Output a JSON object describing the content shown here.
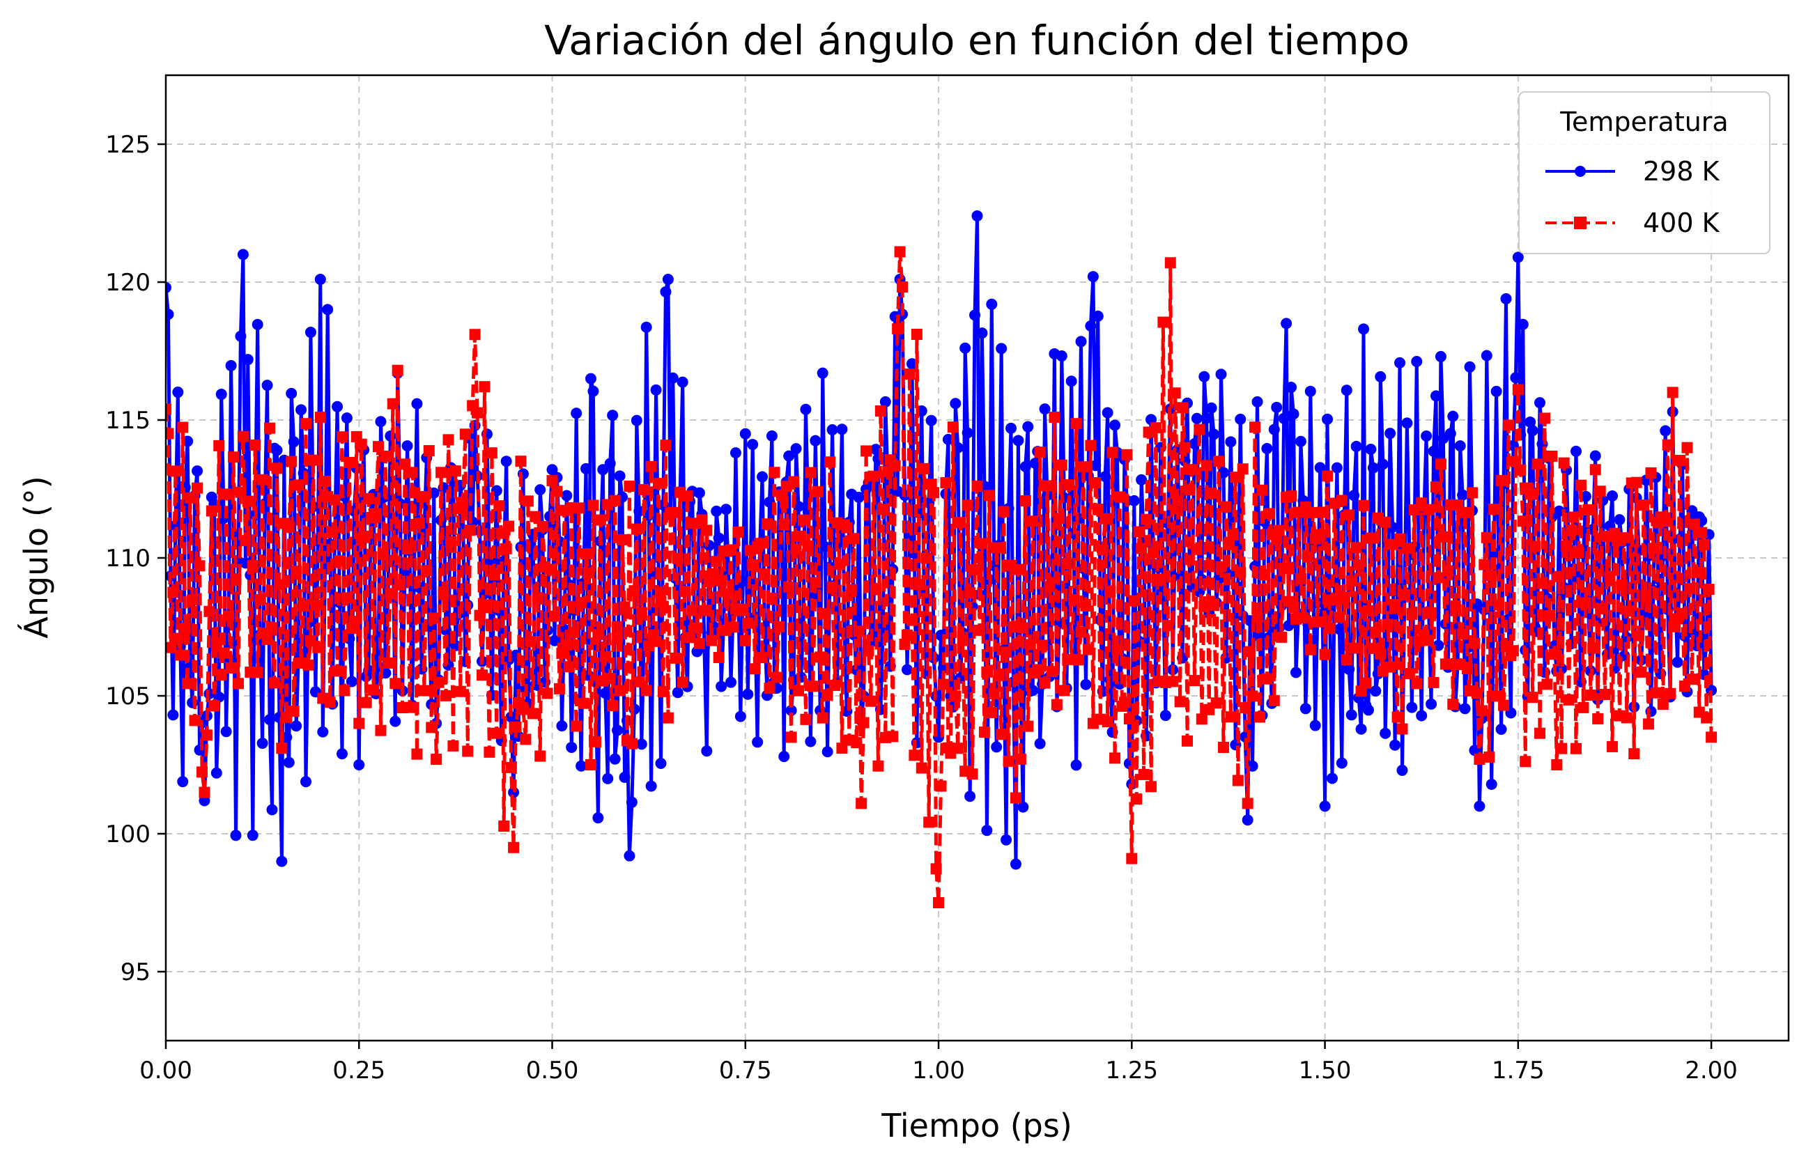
{
  "chart_data": {
    "type": "line",
    "title": "Variación del ángulo en función del tiempo",
    "xlabel": "Tiempo (ps)",
    "ylabel": "Ángulo (°)",
    "xlim": [
      0.0,
      2.1
    ],
    "ylim": [
      92.5,
      127.5
    ],
    "xticks": [
      0.0,
      0.25,
      0.5,
      0.75,
      1.0,
      1.25,
      1.5,
      1.75,
      2.0
    ],
    "xtick_labels": [
      "0.00",
      "0.25",
      "0.50",
      "0.75",
      "1.00",
      "1.25",
      "1.50",
      "1.75",
      "2.00"
    ],
    "yticks": [
      95,
      100,
      105,
      110,
      115,
      120,
      125
    ],
    "ytick_labels": [
      "95",
      "100",
      "105",
      "110",
      "115",
      "120",
      "125"
    ],
    "grid": true,
    "legend": {
      "title": "Temperatura",
      "placement": "top-right"
    },
    "x": [
      0.0,
      0.05,
      0.1,
      0.15,
      0.2,
      0.25,
      0.3,
      0.35,
      0.4,
      0.45,
      0.5,
      0.55,
      0.6,
      0.65,
      0.7,
      0.75,
      0.8,
      0.85,
      0.9,
      0.95,
      1.0,
      1.05,
      1.1,
      1.15,
      1.2,
      1.25,
      1.3,
      1.35,
      1.4,
      1.45,
      1.5,
      1.55,
      1.6,
      1.65,
      1.7,
      1.75,
      1.8,
      1.85,
      1.9,
      1.95,
      2.0
    ],
    "series": [
      {
        "name": "298 K",
        "color": "#0000ff",
        "line_style": "solid",
        "marker": "circle",
        "values": [
          119.8,
          101.2,
          121.0,
          99.0,
          120.1,
          102.5,
          116.7,
          104.0,
          114.8,
          101.5,
          113.2,
          116.5,
          99.2,
          120.1,
          103.0,
          114.5,
          102.8,
          116.7,
          104.1,
          120.1,
          103.5,
          122.4,
          98.9,
          117.4,
          120.2,
          101.8,
          115.4,
          108.0,
          100.5,
          118.5,
          101.0,
          118.3,
          102.3,
          117.3,
          101.0,
          120.9,
          105.9,
          113.7,
          104.6,
          115.3,
          105.2
        ],
        "envelope": {
          "high": [
            119.8,
            114.5,
            121.0,
            117.7,
            120.1,
            115.0,
            116.7,
            115.0,
            114.8,
            114.0,
            113.2,
            116.5,
            118.0,
            120.1,
            112.0,
            114.5,
            116.0,
            116.7,
            114.0,
            120.1,
            115.0,
            122.4,
            117.4,
            117.4,
            120.2,
            115.4,
            115.4,
            118.2,
            115.0,
            118.5,
            115.0,
            118.3,
            117.2,
            117.3,
            117.5,
            120.9,
            114.5,
            113.7,
            113.0,
            115.3,
            112.0
          ],
          "low": [
            101.2,
            101.2,
            99.6,
            99.0,
            102.3,
            102.5,
            104.0,
            104.0,
            105.8,
            101.5,
            104.5,
            99.2,
            99.2,
            101.5,
            106.0,
            103.0,
            102.8,
            102.8,
            104.1,
            103.0,
            103.5,
            100.0,
            98.9,
            103.2,
            101.8,
            101.8,
            104.5,
            108.0,
            100.5,
            105.0,
            101.0,
            101.3,
            102.3,
            103.5,
            101.0,
            102.0,
            105.9,
            104.6,
            104.6,
            104.0,
            105.2
          ]
        }
      },
      {
        "name": "400 K",
        "color": "#ff0000",
        "line_style": "dashed",
        "marker": "square",
        "values": [
          115.4,
          101.5,
          114.4,
          103.1,
          115.1,
          104.0,
          116.8,
          102.7,
          118.1,
          99.5,
          112.8,
          102.5,
          112.6,
          104.2,
          111.0,
          107.0,
          111.2,
          104.2,
          101.1,
          121.1,
          97.5,
          112.6,
          101.3,
          115.1,
          104.0,
          99.1,
          120.7,
          104.5,
          101.1,
          112.2,
          106.5,
          111.9,
          103.8,
          113.4,
          102.7,
          116.1,
          102.5,
          113.2,
          102.9,
          116.0,
          103.5
        ],
        "envelope": {
          "high": [
            115.4,
            114.0,
            114.4,
            115.2,
            115.1,
            115.2,
            116.8,
            115.0,
            118.1,
            114.2,
            112.8,
            113.0,
            112.6,
            115.0,
            111.0,
            111.0,
            114.5,
            114.5,
            113.5,
            121.1,
            116.2,
            112.6,
            112.0,
            115.1,
            115.0,
            114.4,
            120.7,
            114.4,
            116.0,
            112.2,
            113.3,
            111.9,
            112.0,
            113.4,
            112.5,
            116.1,
            116.0,
            113.4,
            113.2,
            116.0,
            112.0
          ],
          "low": [
            105.0,
            101.5,
            105.0,
            103.1,
            104.0,
            104.0,
            102.6,
            102.7,
            102.6,
            99.5,
            104.0,
            102.5,
            103.0,
            104.2,
            106.0,
            107.0,
            102.8,
            104.2,
            101.1,
            101.7,
            97.5,
            102.0,
            101.3,
            104.0,
            104.0,
            99.1,
            102.6,
            103.2,
            101.1,
            106.5,
            106.5,
            105.0,
            103.8,
            104.8,
            102.7,
            102.6,
            102.5,
            102.9,
            102.9,
            104.0,
            103.5
          ]
        }
      }
    ]
  }
}
